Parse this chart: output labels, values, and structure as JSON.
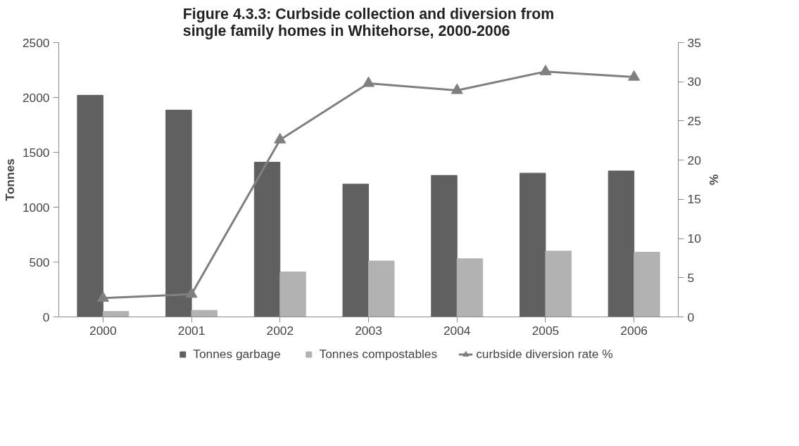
{
  "chart_data": {
    "type": "bar",
    "title": "Figure 4.3.3: Curbside collection and diversion from\nsingle family homes in Whitehorse, 2000-2006",
    "ylabel": "Tonnes",
    "y2label": "%",
    "categories": [
      "2000",
      "2001",
      "2002",
      "2003",
      "2004",
      "2005",
      "2006"
    ],
    "series": [
      {
        "name": "Tonnes garbage",
        "color": "#606060",
        "values": [
          2020,
          1885,
          1410,
          1210,
          1290,
          1310,
          1330
        ]
      },
      {
        "name": "Tonnes compostables",
        "color": "#b2b2b2",
        "values": [
          50,
          60,
          410,
          510,
          530,
          600,
          590
        ]
      },
      {
        "name": "curbside diversion rate %",
        "type": "line",
        "axis": "y2",
        "color": "#7f7f7f",
        "marker": "triangle",
        "values": [
          2.4,
          2.9,
          22.6,
          29.8,
          28.9,
          31.3,
          30.6
        ]
      }
    ],
    "ylim": [
      0,
      2500
    ],
    "yticks": [
      0,
      500,
      1000,
      1500,
      2000,
      2500
    ],
    "y2lim": [
      0,
      35
    ],
    "y2ticks": [
      0,
      5,
      10,
      15,
      20,
      25,
      30,
      35
    ],
    "grid": false,
    "legend": "bottom"
  }
}
